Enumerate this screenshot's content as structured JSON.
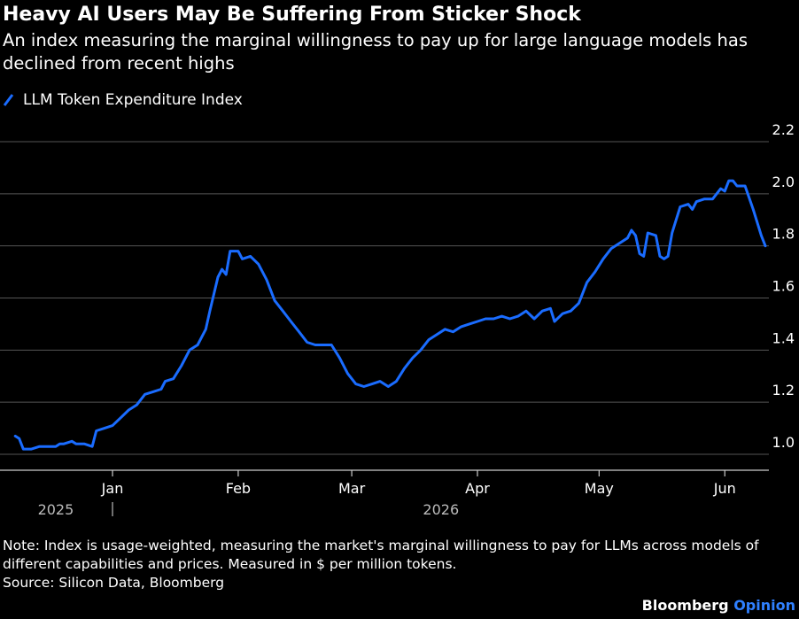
{
  "title": "Heavy AI Users May Be Suffering From Sticker Shock",
  "subtitle": "An index measuring the marginal willingness to pay up for large language models has declined from recent highs",
  "colors": {
    "background": "#000000",
    "line": "#1a6cff",
    "grid": "#555555",
    "text": "#ffffff"
  },
  "legend": {
    "entries": [
      "LLM Token Expenditure Index"
    ],
    "icon": "slash-line-icon"
  },
  "note": "Note: Index is usage-weighted, measuring the market's marginal willingness to pay for LLMs across models of different capabilities and prices. Measured in $ per million tokens.",
  "source": "Source: Silicon Data, Bloomberg",
  "brand": {
    "name": "Bloomberg",
    "product": "Opinion"
  },
  "chart_data": {
    "type": "line",
    "title": "Heavy AI Users May Be Suffering From Sticker Shock",
    "xlabel": "",
    "ylabel": "",
    "ylim": [
      1.0,
      2.2
    ],
    "yticks": [
      1.0,
      1.2,
      1.4,
      1.6,
      1.8,
      2.0,
      2.2
    ],
    "ytick_labels": [
      "1.0",
      "1.2",
      "1.4",
      "1.6",
      "1.8",
      "2.0",
      "2.2"
    ],
    "xlim": [
      "2025-12-06",
      "2026-06-11"
    ],
    "xticks": [
      {
        "date": "2026-01-01",
        "label": "Jan"
      },
      {
        "date": "2026-02-01",
        "label": "Feb"
      },
      {
        "date": "2026-03-01",
        "label": "Mar"
      },
      {
        "date": "2026-04-01",
        "label": "Apr"
      },
      {
        "date": "2026-05-01",
        "label": "May"
      },
      {
        "date": "2026-06-01",
        "label": "Jun"
      }
    ],
    "year_labels": [
      {
        "label": "2025",
        "date": "2025-12-18"
      },
      {
        "label": "2026",
        "date": "2026-03-23"
      }
    ],
    "year_separator": "2026-01-01",
    "grid": true,
    "legend_position": "top-left",
    "series": [
      {
        "name": "LLM Token Expenditure Index",
        "color": "#1a6cff",
        "points": [
          [
            "2025-12-08",
            1.07
          ],
          [
            "2025-12-09",
            1.06
          ],
          [
            "2025-12-10",
            1.02
          ],
          [
            "2025-12-12",
            1.02
          ],
          [
            "2025-12-14",
            1.03
          ],
          [
            "2025-12-16",
            1.03
          ],
          [
            "2025-12-18",
            1.03
          ],
          [
            "2025-12-19",
            1.04
          ],
          [
            "2025-12-20",
            1.04
          ],
          [
            "2025-12-22",
            1.05
          ],
          [
            "2025-12-23",
            1.04
          ],
          [
            "2025-12-25",
            1.04
          ],
          [
            "2025-12-27",
            1.03
          ],
          [
            "2025-12-28",
            1.09
          ],
          [
            "2025-12-30",
            1.1
          ],
          [
            "2026-01-01",
            1.11
          ],
          [
            "2026-01-03",
            1.14
          ],
          [
            "2026-01-05",
            1.17
          ],
          [
            "2026-01-07",
            1.19
          ],
          [
            "2026-01-09",
            1.23
          ],
          [
            "2026-01-11",
            1.24
          ],
          [
            "2026-01-13",
            1.25
          ],
          [
            "2026-01-14",
            1.28
          ],
          [
            "2026-01-16",
            1.29
          ],
          [
            "2026-01-18",
            1.34
          ],
          [
            "2026-01-20",
            1.4
          ],
          [
            "2026-01-22",
            1.42
          ],
          [
            "2026-01-24",
            1.48
          ],
          [
            "2026-01-25",
            1.55
          ],
          [
            "2026-01-27",
            1.68
          ],
          [
            "2026-01-28",
            1.71
          ],
          [
            "2026-01-29",
            1.69
          ],
          [
            "2026-01-30",
            1.78
          ],
          [
            "2026-02-01",
            1.78
          ],
          [
            "2026-02-02",
            1.75
          ],
          [
            "2026-02-04",
            1.76
          ],
          [
            "2026-02-06",
            1.73
          ],
          [
            "2026-02-08",
            1.67
          ],
          [
            "2026-02-10",
            1.59
          ],
          [
            "2026-02-12",
            1.55
          ],
          [
            "2026-02-14",
            1.51
          ],
          [
            "2026-02-16",
            1.47
          ],
          [
            "2026-02-18",
            1.43
          ],
          [
            "2026-02-20",
            1.42
          ],
          [
            "2026-02-22",
            1.42
          ],
          [
            "2026-02-24",
            1.42
          ],
          [
            "2026-02-26",
            1.37
          ],
          [
            "2026-02-28",
            1.31
          ],
          [
            "2026-03-02",
            1.27
          ],
          [
            "2026-03-04",
            1.26
          ],
          [
            "2026-03-06",
            1.27
          ],
          [
            "2026-03-08",
            1.28
          ],
          [
            "2026-03-10",
            1.26
          ],
          [
            "2026-03-12",
            1.28
          ],
          [
            "2026-03-14",
            1.33
          ],
          [
            "2026-03-16",
            1.37
          ],
          [
            "2026-03-18",
            1.4
          ],
          [
            "2026-03-20",
            1.44
          ],
          [
            "2026-03-22",
            1.46
          ],
          [
            "2026-03-24",
            1.48
          ],
          [
            "2026-03-26",
            1.47
          ],
          [
            "2026-03-28",
            1.49
          ],
          [
            "2026-03-30",
            1.5
          ],
          [
            "2026-04-01",
            1.51
          ],
          [
            "2026-04-03",
            1.52
          ],
          [
            "2026-04-05",
            1.52
          ],
          [
            "2026-04-07",
            1.53
          ],
          [
            "2026-04-09",
            1.52
          ],
          [
            "2026-04-11",
            1.53
          ],
          [
            "2026-04-13",
            1.55
          ],
          [
            "2026-04-15",
            1.52
          ],
          [
            "2026-04-17",
            1.55
          ],
          [
            "2026-04-19",
            1.56
          ],
          [
            "2026-04-20",
            1.51
          ],
          [
            "2026-04-22",
            1.54
          ],
          [
            "2026-04-24",
            1.55
          ],
          [
            "2026-04-26",
            1.58
          ],
          [
            "2026-04-28",
            1.66
          ],
          [
            "2026-04-30",
            1.7
          ],
          [
            "2026-05-02",
            1.75
          ],
          [
            "2026-05-04",
            1.79
          ],
          [
            "2026-05-06",
            1.81
          ],
          [
            "2026-05-08",
            1.83
          ],
          [
            "2026-05-09",
            1.86
          ],
          [
            "2026-05-10",
            1.84
          ],
          [
            "2026-05-11",
            1.77
          ],
          [
            "2026-05-12",
            1.76
          ],
          [
            "2026-05-13",
            1.85
          ],
          [
            "2026-05-15",
            1.84
          ],
          [
            "2026-05-16",
            1.76
          ],
          [
            "2026-05-17",
            1.75
          ],
          [
            "2026-05-18",
            1.76
          ],
          [
            "2026-05-19",
            1.85
          ],
          [
            "2026-05-21",
            1.95
          ],
          [
            "2026-05-23",
            1.96
          ],
          [
            "2026-05-24",
            1.94
          ],
          [
            "2026-05-25",
            1.97
          ],
          [
            "2026-05-27",
            1.98
          ],
          [
            "2026-05-29",
            1.98
          ],
          [
            "2026-05-31",
            2.02
          ],
          [
            "2026-06-01",
            2.01
          ],
          [
            "2026-06-02",
            2.05
          ],
          [
            "2026-06-03",
            2.05
          ],
          [
            "2026-06-04",
            2.03
          ],
          [
            "2026-06-06",
            2.03
          ],
          [
            "2026-06-08",
            1.94
          ],
          [
            "2026-06-10",
            1.84
          ],
          [
            "2026-06-11",
            1.8
          ]
        ]
      }
    ]
  }
}
